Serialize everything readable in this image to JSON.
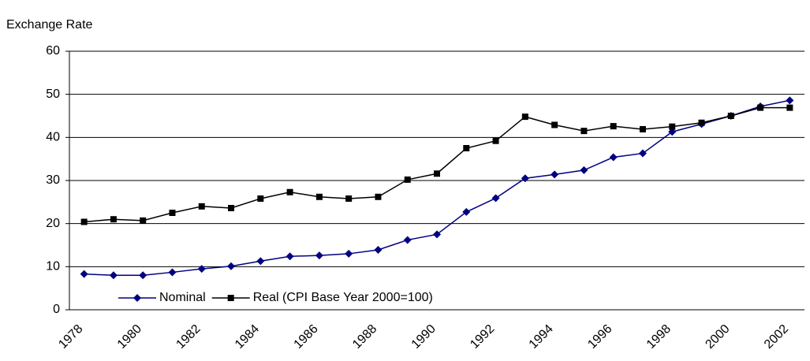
{
  "chart_data": {
    "type": "line",
    "y_label": "Exchange Rate",
    "categories": [
      "1978",
      null,
      "1980",
      null,
      "1982",
      null,
      "1984",
      null,
      "1986",
      null,
      "1988",
      null,
      "1990",
      null,
      "1992",
      null,
      "1994",
      null,
      "1996",
      null,
      "1998",
      null,
      "2000",
      null,
      "2002"
    ],
    "series": [
      {
        "name": "Nominal",
        "color": "#000080",
        "marker": "diamond",
        "values": [
          8.3,
          8.0,
          8.0,
          8.7,
          9.5,
          10.1,
          11.3,
          12.4,
          12.6,
          13.0,
          13.9,
          16.2,
          17.5,
          22.7,
          25.9,
          30.5,
          31.4,
          32.4,
          35.4,
          36.3,
          41.3,
          43.1,
          45.0,
          47.2,
          48.6
        ]
      },
      {
        "name": "Real (CPI Base Year 2000=100)",
        "color": "#000000",
        "marker": "square",
        "values": [
          20.4,
          21.0,
          20.7,
          22.5,
          24.0,
          23.6,
          25.8,
          27.3,
          26.2,
          25.8,
          26.2,
          30.2,
          31.6,
          37.5,
          39.2,
          44.8,
          42.9,
          41.5,
          42.6,
          41.9,
          42.5,
          43.4,
          45.0,
          46.9,
          46.9
        ]
      }
    ],
    "ylim": [
      0,
      60
    ],
    "yticks": [
      0,
      10,
      20,
      30,
      40,
      50,
      60
    ],
    "grid": true,
    "legend": "bottom-left"
  }
}
